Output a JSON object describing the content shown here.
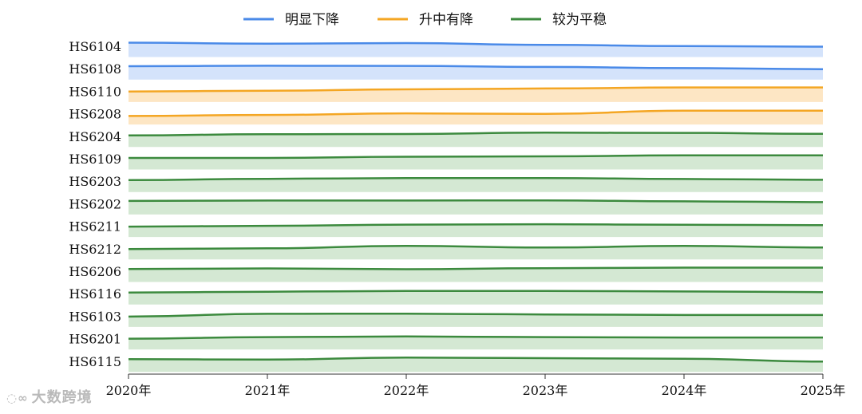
{
  "chart_data": {
    "type": "area",
    "x": [
      "2020年",
      "2021年",
      "2022年",
      "2023年",
      "2024年",
      "2025年"
    ],
    "legend": [
      {
        "key": "down",
        "label": "明显下降",
        "color": "#4a8ae8",
        "fill": "#d4e3fb"
      },
      {
        "key": "rise_fall",
        "label": "升中有降",
        "color": "#f4a623",
        "fill": "#fde6c4"
      },
      {
        "key": "flat",
        "label": "较为平稳",
        "color": "#3c8a3e",
        "fill": "#d4e8d3"
      }
    ],
    "legend_position": "top-center",
    "grid": false,
    "series": [
      {
        "name": "HS6104",
        "group": "down",
        "values": [
          0.95,
          0.82,
          0.9,
          0.68,
          0.52,
          0.45
        ]
      },
      {
        "name": "HS6108",
        "group": "down",
        "values": [
          0.82,
          0.88,
          0.86,
          0.73,
          0.58,
          0.45
        ]
      },
      {
        "name": "HS6110",
        "group": "rise_fall",
        "values": [
          0.47,
          0.57,
          0.74,
          0.85,
          0.98,
          0.98
        ]
      },
      {
        "name": "HS6208",
        "group": "rise_fall",
        "values": [
          0.22,
          0.35,
          0.55,
          0.48,
          0.88,
          0.88
        ]
      },
      {
        "name": "HS6204",
        "group": "flat",
        "values": [
          0.6,
          0.75,
          0.78,
          0.95,
          0.92,
          0.8
        ]
      },
      {
        "name": "HS6109",
        "group": "flat",
        "values": [
          0.6,
          0.6,
          0.75,
          0.8,
          0.92,
          0.92
        ]
      },
      {
        "name": "HS6203",
        "group": "flat",
        "values": [
          0.65,
          0.8,
          0.9,
          0.9,
          0.78,
          0.68
        ]
      },
      {
        "name": "HS6202",
        "group": "flat",
        "values": [
          0.85,
          0.9,
          0.9,
          0.92,
          0.8,
          0.7
        ]
      },
      {
        "name": "HS6211",
        "group": "flat",
        "values": [
          0.45,
          0.55,
          0.7,
          0.75,
          0.68,
          0.63
        ]
      },
      {
        "name": "HS6212",
        "group": "flat",
        "values": [
          0.45,
          0.55,
          0.85,
          0.65,
          0.85,
          0.65
        ]
      },
      {
        "name": "HS6206",
        "group": "flat",
        "values": [
          0.78,
          0.85,
          0.75,
          0.88,
          0.95,
          0.95
        ]
      },
      {
        "name": "HS6116",
        "group": "flat",
        "values": [
          0.65,
          0.75,
          0.85,
          0.85,
          0.78,
          0.7
        ]
      },
      {
        "name": "HS6103",
        "group": "flat",
        "values": [
          0.45,
          0.8,
          0.82,
          0.72,
          0.65,
          0.65
        ]
      },
      {
        "name": "HS6201",
        "group": "flat",
        "values": [
          0.5,
          0.7,
          0.78,
          0.7,
          0.65,
          0.65
        ]
      },
      {
        "name": "HS6115",
        "group": "flat",
        "values": [
          0.75,
          0.7,
          0.95,
          0.88,
          0.8,
          0.45
        ]
      }
    ]
  },
  "watermark": {
    "logo": "◌∞",
    "text": "大数跨境"
  }
}
